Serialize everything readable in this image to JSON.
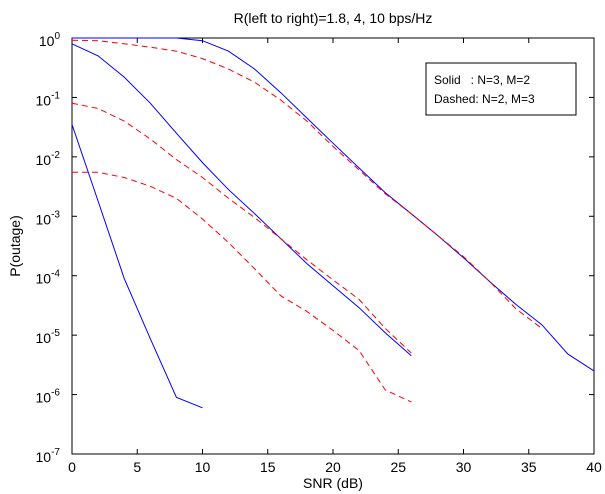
{
  "chart_data": {
    "type": "line",
    "title": "R(left to right)=1.8, 4, 10 bps/Hz",
    "xlabel": "SNR (dB)",
    "ylabel": "P(outage)",
    "xlim": [
      0,
      40
    ],
    "ylim_log10": [
      -7,
      0
    ],
    "yscale": "log",
    "x_ticks": [
      0,
      5,
      10,
      15,
      20,
      25,
      30,
      35,
      40
    ],
    "y_tick_exponents": [
      0,
      -1,
      -2,
      -3,
      -4,
      -5,
      -6,
      -7
    ],
    "y_tick_base": "10",
    "grid": false,
    "legend_position": "top-right",
    "legend": [
      {
        "label": "Solid   : N=3, M=2",
        "style": "solid",
        "color": "#0000ff"
      },
      {
        "label": "Dashed: N=2, M=3",
        "style": "dashed",
        "color": "#ff0000"
      }
    ],
    "series": [
      {
        "style": "solid",
        "color": "#0000ff",
        "x": [
          0,
          2,
          4,
          6,
          8,
          10
        ],
        "y": [
          0.035,
          0.0018,
          9e-05,
          8.7e-06,
          9e-07,
          6e-07
        ]
      },
      {
        "style": "dashed",
        "color": "#ff0000",
        "x": [
          0,
          2,
          4,
          6,
          8,
          10,
          12,
          14,
          16,
          18,
          20,
          22,
          24,
          26
        ],
        "y": [
          0.0055,
          0.0055,
          0.0045,
          0.0032,
          0.002,
          0.0009,
          0.00036,
          0.00013,
          4.6e-05,
          2.5e-05,
          1.2e-05,
          5.5e-06,
          1.2e-06,
          7.5e-07
        ]
      },
      {
        "style": "solid",
        "color": "#0000ff",
        "x": [
          0,
          2,
          4,
          6,
          8,
          10,
          12,
          14,
          16,
          18,
          20,
          22,
          24,
          26
        ],
        "y": [
          0.8,
          0.5,
          0.22,
          0.08,
          0.025,
          0.008,
          0.0028,
          0.0011,
          0.00042,
          0.00016,
          6.8e-05,
          2.9e-05,
          1.1e-05,
          4.5e-06
        ]
      },
      {
        "style": "dashed",
        "color": "#ff0000",
        "x": [
          0,
          2,
          4,
          6,
          8,
          10,
          12,
          14,
          16,
          18,
          20,
          22,
          24,
          26
        ],
        "y": [
          0.08,
          0.065,
          0.04,
          0.02,
          0.009,
          0.0045,
          0.002,
          0.00095,
          0.00042,
          0.000185,
          8.5e-05,
          4e-05,
          1.3e-05,
          5e-06
        ]
      },
      {
        "style": "solid",
        "color": "#0000ff",
        "x": [
          0,
          2,
          4,
          6,
          8,
          10,
          12,
          14,
          16,
          18,
          20,
          22,
          24,
          26,
          28,
          30,
          32,
          34,
          36,
          38,
          40
        ],
        "y": [
          1,
          1,
          1,
          1,
          1,
          0.9,
          0.6,
          0.3,
          0.12,
          0.045,
          0.017,
          0.0065,
          0.0025,
          0.0011,
          0.00048,
          0.0002,
          8e-05,
          3.3e-05,
          1.5e-05,
          4.8e-06,
          2.5e-06
        ]
      },
      {
        "style": "dashed",
        "color": "#ff0000",
        "x": [
          0,
          2,
          4,
          6,
          8,
          10,
          12,
          14,
          16,
          18,
          20,
          22,
          24,
          26,
          28,
          30,
          32,
          34,
          36
        ],
        "y": [
          0.92,
          0.9,
          0.8,
          0.7,
          0.6,
          0.45,
          0.3,
          0.18,
          0.09,
          0.04,
          0.015,
          0.006,
          0.0024,
          0.0011,
          0.00048,
          0.00021,
          8e-05,
          2.8e-05,
          1.3e-05
        ]
      }
    ]
  }
}
